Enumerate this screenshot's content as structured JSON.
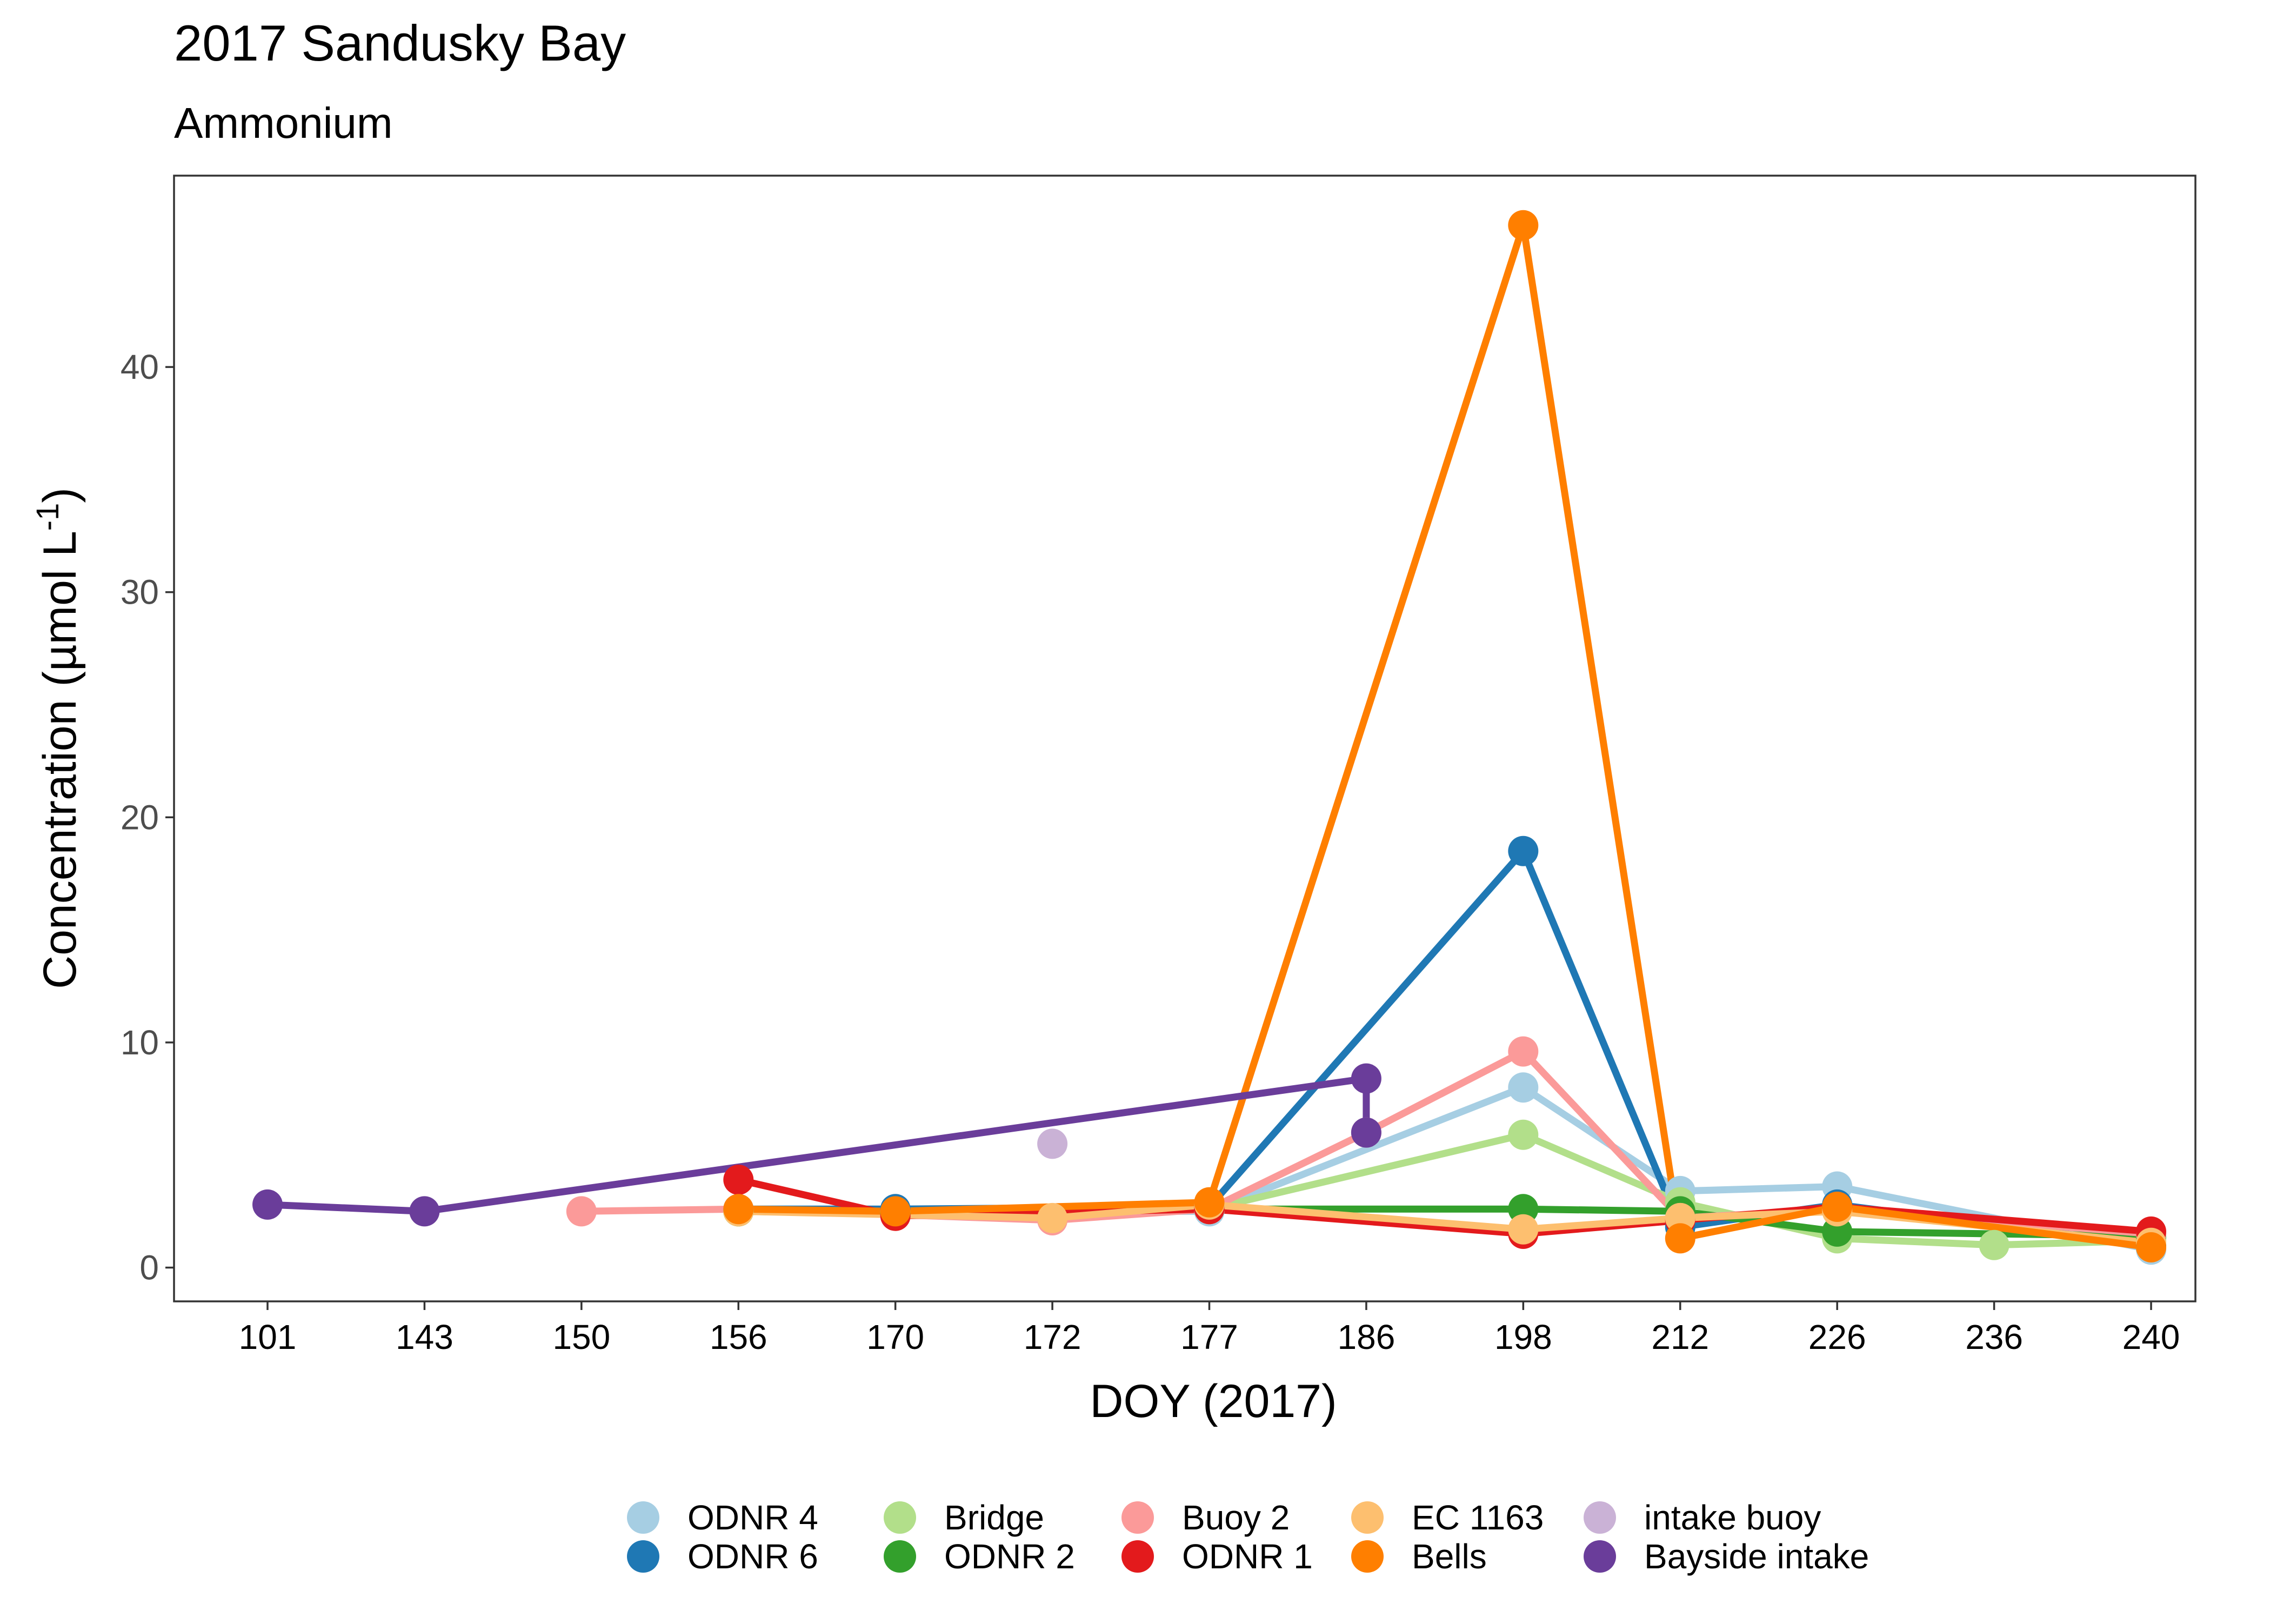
{
  "chart_data": {
    "type": "line",
    "title": "2017 Sandusky Bay",
    "subtitle": "Ammonium",
    "xlabel": "DOY (2017)",
    "ylabel": "Concentration (µmol L",
    "ylabel_sup": "-1",
    "ylabel_close": ")",
    "categories": [
      "101",
      "143",
      "150",
      "156",
      "170",
      "172",
      "177",
      "186",
      "198",
      "212",
      "226",
      "236",
      "240"
    ],
    "ylim": [
      -1.5,
      48.5
    ],
    "yticks": [
      0,
      10,
      20,
      30,
      40
    ],
    "ytick_labels": [
      "0",
      "10",
      "20",
      "30",
      "40"
    ],
    "grid": false,
    "legend_position": "bottom",
    "series": [
      {
        "name": "ODNR 4",
        "color": "#A6CEE3",
        "points": [
          [
            "156",
            2.5
          ],
          [
            "170",
            2.5
          ],
          [
            "177",
            2.5
          ],
          [
            "198",
            8.0
          ],
          [
            "212",
            3.4
          ],
          [
            "226",
            3.6
          ],
          [
            "240",
            0.8
          ]
        ]
      },
      {
        "name": "ODNR 6",
        "color": "#1F78B4",
        "points": [
          [
            "156",
            2.6
          ],
          [
            "170",
            2.6
          ],
          [
            "177",
            2.7
          ],
          [
            "198",
            18.5
          ],
          [
            "212",
            1.8
          ],
          [
            "226",
            2.8
          ],
          [
            "240",
            1.0
          ]
        ]
      },
      {
        "name": "Bridge",
        "color": "#B2DF8A",
        "points": [
          [
            "156",
            2.5
          ],
          [
            "170",
            2.4
          ],
          [
            "177",
            2.6
          ],
          [
            "198",
            5.9
          ],
          [
            "212",
            2.9
          ],
          [
            "226",
            1.3
          ],
          [
            "236",
            1.0
          ],
          [
            "240",
            1.2
          ]
        ]
      },
      {
        "name": "ODNR 2",
        "color": "#33A02C",
        "points": [
          [
            "156",
            2.5
          ],
          [
            "170",
            2.4
          ],
          [
            "177",
            2.6
          ],
          [
            "198",
            2.6
          ],
          [
            "212",
            2.5
          ],
          [
            "226",
            1.6
          ],
          [
            "240",
            1.4
          ]
        ]
      },
      {
        "name": "Buoy 2",
        "color": "#FB9A99",
        "points": [
          [
            "150",
            2.5
          ],
          [
            "156",
            2.6
          ],
          [
            "172",
            2.1
          ],
          [
            "177",
            2.6
          ],
          [
            "186",
            6.0
          ],
          [
            "198",
            9.6
          ],
          [
            "212",
            2.2
          ],
          [
            "226",
            2.6
          ],
          [
            "240",
            1.5
          ]
        ]
      },
      {
        "name": "ODNR 1",
        "color": "#E31A1C",
        "points": [
          [
            "156",
            3.9
          ],
          [
            "170",
            2.3
          ],
          [
            "177",
            2.6
          ],
          [
            "198",
            1.5
          ],
          [
            "212",
            2.1
          ],
          [
            "226",
            2.7
          ],
          [
            "240",
            1.6
          ]
        ]
      },
      {
        "name": "EC 1163",
        "color": "#FDBF6F",
        "points": [
          [
            "156",
            2.5
          ],
          [
            "172",
            2.2
          ],
          [
            "177",
            2.8
          ],
          [
            "198",
            1.7
          ],
          [
            "212",
            2.2
          ],
          [
            "226",
            2.5
          ],
          [
            "240",
            1.1
          ]
        ]
      },
      {
        "name": "Bells",
        "color": "#FF7F00",
        "points": [
          [
            "156",
            2.6
          ],
          [
            "170",
            2.5
          ],
          [
            "177",
            2.9
          ],
          [
            "198",
            46.3
          ],
          [
            "212",
            1.3
          ],
          [
            "226",
            2.7
          ],
          [
            "240",
            0.9
          ]
        ]
      },
      {
        "name": "intake buoy",
        "color": "#CAB2D6",
        "points": [
          [
            "172",
            5.5
          ]
        ]
      },
      {
        "name": "Bayside intake",
        "color": "#6A3D9A",
        "points": [
          [
            "101",
            2.8
          ],
          [
            "143",
            2.5
          ],
          [
            "186",
            8.4
          ],
          [
            "186",
            6.0
          ]
        ]
      }
    ]
  }
}
